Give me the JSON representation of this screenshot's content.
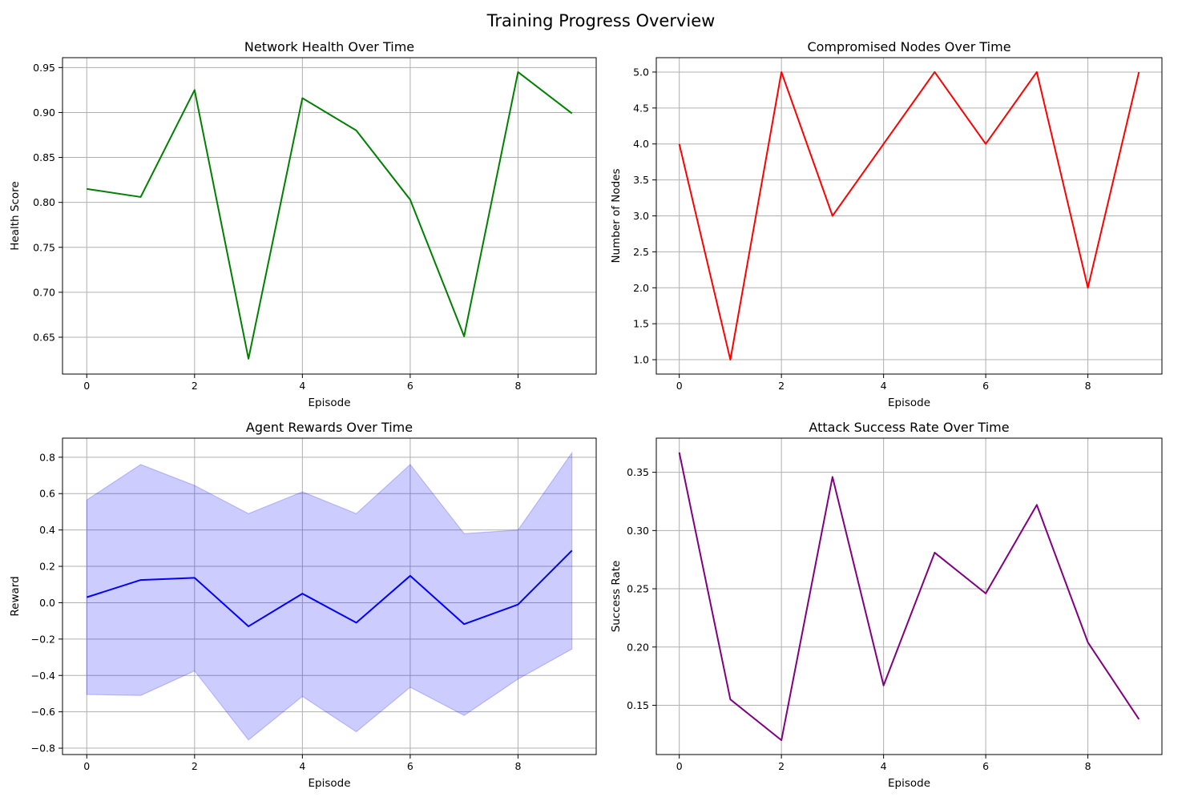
{
  "figure": {
    "title": "Training Progress Overview"
  },
  "chart_data": [
    {
      "type": "line",
      "title": "Network Health Over Time",
      "xlabel": "Episode",
      "ylabel": "Health Score",
      "x": [
        0,
        1,
        2,
        3,
        4,
        5,
        6,
        7,
        8,
        9
      ],
      "series": [
        {
          "values": [
            0.815,
            0.806,
            0.925,
            0.626,
            0.916,
            0.88,
            0.803,
            0.651,
            0.945,
            0.899
          ],
          "color": "#008000"
        }
      ],
      "xlim": [
        -0.45,
        9.45
      ],
      "ylim": [
        0.609,
        0.961
      ],
      "xticks": [
        0,
        2,
        4,
        6,
        8
      ],
      "xtick_labels": [
        "0",
        "2",
        "4",
        "6",
        "8"
      ],
      "yticks": [
        0.65,
        0.7,
        0.75,
        0.8,
        0.85,
        0.9,
        0.95
      ],
      "ytick_labels": [
        "0.65",
        "0.70",
        "0.75",
        "0.80",
        "0.85",
        "0.90",
        "0.95"
      ],
      "grid": true
    },
    {
      "type": "line",
      "title": "Compromised Nodes Over Time",
      "xlabel": "Episode",
      "ylabel": "Number of Nodes",
      "x": [
        0,
        1,
        2,
        3,
        4,
        5,
        6,
        7,
        8,
        9
      ],
      "series": [
        {
          "values": [
            4,
            1,
            5,
            3,
            4,
            5,
            4,
            5,
            2,
            5
          ],
          "color": "#ff0000"
        }
      ],
      "xlim": [
        -0.45,
        9.45
      ],
      "ylim": [
        0.8,
        5.2
      ],
      "xticks": [
        0,
        2,
        4,
        6,
        8
      ],
      "xtick_labels": [
        "0",
        "2",
        "4",
        "6",
        "8"
      ],
      "yticks": [
        1.0,
        1.5,
        2.0,
        2.5,
        3.0,
        3.5,
        4.0,
        4.5,
        5.0
      ],
      "ytick_labels": [
        "1.0",
        "1.5",
        "2.0",
        "2.5",
        "3.0",
        "3.5",
        "4.0",
        "4.5",
        "5.0"
      ],
      "grid": true
    },
    {
      "type": "area",
      "title": "Agent Rewards Over Time",
      "xlabel": "Episode",
      "ylabel": "Reward",
      "x": [
        0,
        1,
        2,
        3,
        4,
        5,
        6,
        7,
        8,
        9
      ],
      "series": [
        {
          "values": [
            0.03,
            0.125,
            0.137,
            -0.13,
            0.05,
            -0.11,
            0.148,
            -0.118,
            -0.01,
            0.287
          ],
          "color": "#0000ff"
        }
      ],
      "band": {
        "upper": [
          0.565,
          0.76,
          0.645,
          0.49,
          0.61,
          0.49,
          0.76,
          0.38,
          0.4,
          0.825
        ],
        "lower": [
          -0.505,
          -0.51,
          -0.375,
          -0.755,
          -0.515,
          -0.71,
          -0.465,
          -0.62,
          -0.42,
          -0.255
        ],
        "color": "#0000ff",
        "opacity": 0.2
      },
      "xlim": [
        -0.45,
        9.45
      ],
      "ylim": [
        -0.835,
        0.905
      ],
      "xticks": [
        0,
        2,
        4,
        6,
        8
      ],
      "xtick_labels": [
        "0",
        "2",
        "4",
        "6",
        "8"
      ],
      "yticks": [
        -0.8,
        -0.6,
        -0.4,
        -0.2,
        0.0,
        0.2,
        0.4,
        0.6,
        0.8
      ],
      "ytick_labels": [
        "−0.8",
        "−0.6",
        "−0.4",
        "−0.2",
        "0.0",
        "0.2",
        "0.4",
        "0.6",
        "0.8"
      ],
      "grid": true
    },
    {
      "type": "line",
      "title": "Attack Success Rate Over Time",
      "xlabel": "Episode",
      "ylabel": "Success Rate",
      "x": [
        0,
        1,
        2,
        3,
        4,
        5,
        6,
        7,
        8,
        9
      ],
      "series": [
        {
          "values": [
            0.367,
            0.155,
            0.12,
            0.346,
            0.167,
            0.281,
            0.246,
            0.322,
            0.204,
            0.138
          ],
          "color": "#800080"
        }
      ],
      "xlim": [
        -0.45,
        9.45
      ],
      "ylim": [
        0.1077,
        0.3793
      ],
      "xticks": [
        0,
        2,
        4,
        6,
        8
      ],
      "xtick_labels": [
        "0",
        "2",
        "4",
        "6",
        "8"
      ],
      "yticks": [
        0.15,
        0.2,
        0.25,
        0.3,
        0.35
      ],
      "ytick_labels": [
        "0.15",
        "0.20",
        "0.25",
        "0.30",
        "0.35"
      ],
      "grid": true
    }
  ]
}
